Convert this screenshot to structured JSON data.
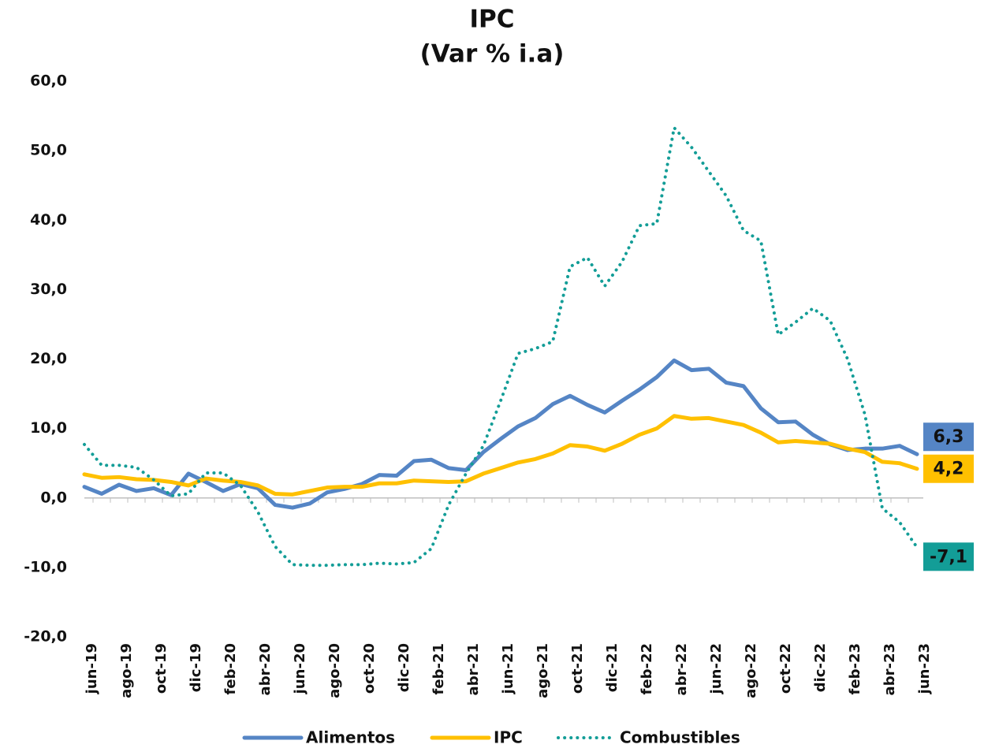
{
  "chart_data": {
    "type": "line",
    "title": "IPC",
    "subtitle": "(Var % i.a)",
    "categories": [
      "jun-19",
      null,
      "ago-19",
      null,
      "oct-19",
      null,
      "dic-19",
      null,
      "feb-20",
      null,
      "abr-20",
      null,
      "jun-20",
      null,
      "ago-20",
      null,
      "oct-20",
      null,
      "dic-20",
      null,
      "feb-21",
      null,
      "abr-21",
      null,
      "jun-21",
      null,
      "ago-21",
      null,
      "oct-21",
      null,
      "dic-21",
      null,
      "feb-22",
      null,
      "abr-22",
      null,
      "jun-22",
      null,
      "ago-22",
      null,
      "oct-22",
      null,
      "dic-22",
      null,
      "feb-23",
      null,
      "abr-23",
      null,
      "jun-23"
    ],
    "series": [
      {
        "name": "Alimentos",
        "color": "#5585c5",
        "dash": false,
        "values": [
          1.6,
          0.6,
          1.9,
          1.0,
          1.4,
          0.4,
          3.5,
          2.3,
          1.0,
          2.0,
          1.4,
          -1.0,
          -1.4,
          -0.8,
          0.8,
          1.3,
          2.0,
          3.3,
          3.2,
          5.3,
          5.5,
          4.3,
          4.0,
          6.6,
          8.5,
          10.3,
          11.5,
          13.5,
          14.7,
          13.4,
          12.3,
          14.0,
          15.6,
          17.4,
          19.8,
          18.4,
          18.6,
          16.6,
          16.1,
          12.9,
          10.9,
          11.0,
          9.1,
          7.7,
          6.9,
          7.1,
          7.1,
          7.5,
          6.3
        ],
        "value_labels": [
          null,
          null,
          null,
          null,
          null,
          null,
          null,
          null,
          null,
          null,
          null,
          null,
          null,
          null,
          null,
          null,
          null,
          null,
          null,
          null,
          null,
          null,
          null,
          null,
          null,
          null,
          null,
          null,
          null,
          null,
          null,
          null,
          null,
          null,
          null,
          null,
          null,
          null,
          null,
          null,
          null,
          null,
          null,
          null,
          null,
          null,
          null,
          null,
          "6,3"
        ]
      },
      {
        "name": "IPC",
        "color": "#ffc000",
        "dash": false,
        "values": [
          3.4,
          2.9,
          3.0,
          2.7,
          2.6,
          2.3,
          1.8,
          2.8,
          2.5,
          2.3,
          1.8,
          0.6,
          0.5,
          1.0,
          1.5,
          1.6,
          1.6,
          2.1,
          2.1,
          2.5,
          2.4,
          2.3,
          2.4,
          3.5,
          4.3,
          5.1,
          5.6,
          6.4,
          7.6,
          7.4,
          6.8,
          7.8,
          9.1,
          10.0,
          11.8,
          11.4,
          11.5,
          11.0,
          10.5,
          9.4,
          8.0,
          8.2,
          8.0,
          7.8,
          7.1,
          6.6,
          5.2,
          5.0,
          4.2
        ],
        "value_labels": [
          null,
          null,
          null,
          null,
          null,
          null,
          null,
          null,
          null,
          null,
          null,
          null,
          null,
          null,
          null,
          null,
          null,
          null,
          null,
          null,
          null,
          null,
          null,
          null,
          null,
          null,
          null,
          null,
          null,
          null,
          null,
          null,
          null,
          null,
          null,
          null,
          null,
          null,
          null,
          null,
          null,
          null,
          null,
          null,
          null,
          null,
          null,
          null,
          "4,2"
        ]
      },
      {
        "name": "Combustibles",
        "color": "#139d97",
        "dash": true,
        "values": [
          7.7,
          4.7,
          4.7,
          4.4,
          2.6,
          0.3,
          0.6,
          3.6,
          3.6,
          1.8,
          -2.0,
          -7.0,
          -9.6,
          -9.7,
          -9.7,
          -9.6,
          -9.6,
          -9.4,
          -9.5,
          -9.3,
          -7.3,
          -1.0,
          3.5,
          7.5,
          14.0,
          20.8,
          21.5,
          22.5,
          33.3,
          34.6,
          30.5,
          34.0,
          39.2,
          39.5,
          53.3,
          50.5,
          47.0,
          43.5,
          38.5,
          37.0,
          23.5,
          25.3,
          27.3,
          25.5,
          20.0,
          12.0,
          -1.5,
          -3.5,
          -7.1
        ],
        "value_labels": [
          null,
          null,
          null,
          null,
          null,
          null,
          null,
          null,
          null,
          null,
          null,
          null,
          null,
          null,
          null,
          null,
          null,
          null,
          null,
          null,
          null,
          null,
          null,
          null,
          null,
          null,
          null,
          null,
          null,
          null,
          null,
          null,
          null,
          null,
          null,
          null,
          null,
          null,
          null,
          null,
          null,
          null,
          null,
          null,
          null,
          null,
          null,
          null,
          "-7,1"
        ]
      }
    ],
    "ylim": [
      -20,
      60
    ],
    "yticks": [
      {
        "value": -20,
        "label": "-20,0"
      },
      {
        "value": -10,
        "label": "-10,0"
      },
      {
        "value": 0,
        "label": "0,0"
      },
      {
        "value": 10,
        "label": "10,0"
      },
      {
        "value": 20,
        "label": "20,0"
      },
      {
        "value": 30,
        "label": "30,0"
      },
      {
        "value": 40,
        "label": "40,0"
      },
      {
        "value": 50,
        "label": "50,0"
      },
      {
        "value": 60,
        "label": "60,0"
      }
    ],
    "grid": false
  }
}
